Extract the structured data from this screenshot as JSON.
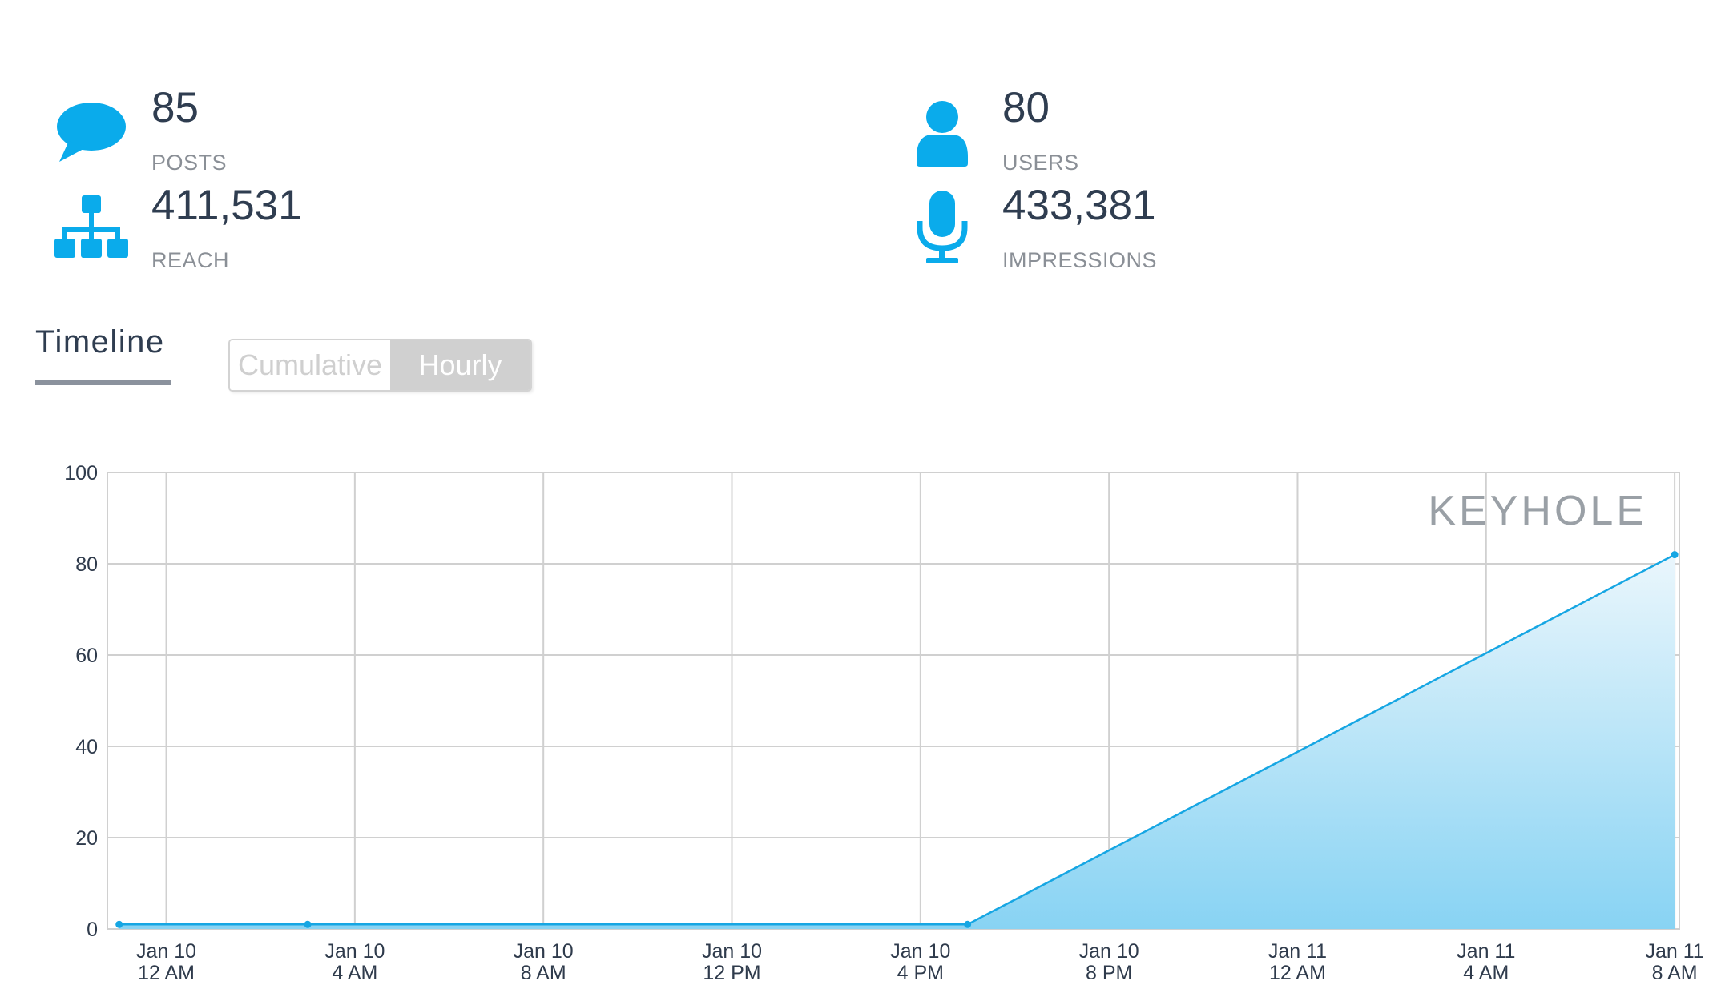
{
  "stats": {
    "posts": {
      "value": "85",
      "label": "POSTS",
      "icon": "speech-bubble-icon"
    },
    "users": {
      "value": "80",
      "label": "USERS",
      "icon": "user-icon"
    },
    "reach": {
      "value": "411,531",
      "label": "REACH",
      "icon": "network-icon"
    },
    "impressions": {
      "value": "433,381",
      "label": "IMPRESSIONS",
      "icon": "microphone-icon"
    }
  },
  "timeline": {
    "tab_label": "Timeline",
    "toggle": {
      "cumulative": "Cumulative",
      "hourly": "Hourly",
      "selected": "Hourly"
    }
  },
  "colors": {
    "accent": "#0aabeb",
    "line": "#16a6e3",
    "area_top": "#eaf6fc",
    "area_bottom": "#88d3f3",
    "grid": "#d0d0d0"
  },
  "chart_data": {
    "type": "area",
    "watermark": "KEYHOLE",
    "ylim": [
      0,
      100
    ],
    "yticks": [
      "0",
      "20",
      "40",
      "60",
      "80",
      "100"
    ],
    "xticks": [
      {
        "line1": "Jan 10",
        "line2": "12 AM"
      },
      {
        "line1": "Jan 10",
        "line2": "4 AM"
      },
      {
        "line1": "Jan 10",
        "line2": "8 AM"
      },
      {
        "line1": "Jan 10",
        "line2": "12 PM"
      },
      {
        "line1": "Jan 10",
        "line2": "4 PM"
      },
      {
        "line1": "Jan 10",
        "line2": "8 PM"
      },
      {
        "line1": "Jan 11",
        "line2": "12 AM"
      },
      {
        "line1": "Jan 11",
        "line2": "4 AM"
      },
      {
        "line1": "Jan 11",
        "line2": "8 AM"
      }
    ],
    "series": [
      {
        "points": [
          {
            "x": "Jan 9 11 PM",
            "y": 1
          },
          {
            "x": "Jan 10 3 AM",
            "y": 1
          },
          {
            "x": "Jan 10 5 PM",
            "y": 1
          },
          {
            "x": "Jan 11 8 AM",
            "y": 82
          }
        ]
      }
    ],
    "grid": true
  }
}
